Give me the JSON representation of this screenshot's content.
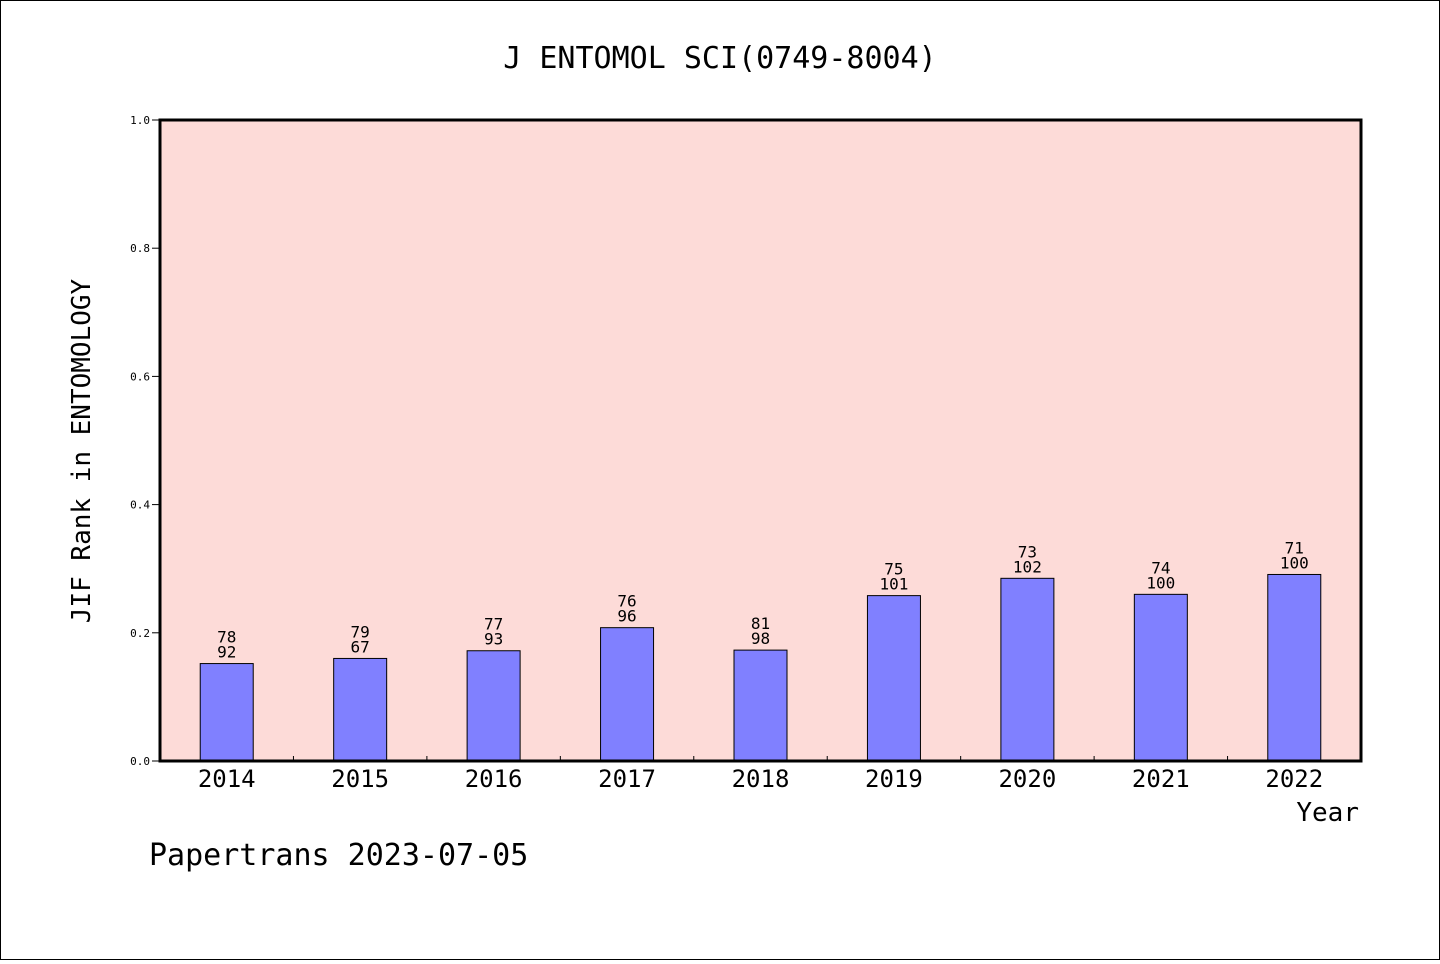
{
  "chart_data": {
    "type": "bar",
    "title": "J ENTOMOL SCI(0749-8004)",
    "xlabel": "Year",
    "ylabel": "JIF Rank in ENTOMOLOGY",
    "categories": [
      "2014",
      "2015",
      "2016",
      "2017",
      "2018",
      "2019",
      "2020",
      "2021",
      "2022"
    ],
    "values": [
      0.152,
      0.16,
      0.172,
      0.208,
      0.173,
      0.258,
      0.285,
      0.26,
      0.291
    ],
    "rank_labels": [
      "78",
      "79",
      "77",
      "76",
      "81",
      "75",
      "73",
      "74",
      "71"
    ],
    "total_labels": [
      "92",
      "67",
      "93",
      "96",
      "98",
      "101",
      "102",
      "100",
      "100"
    ],
    "ylim": [
      0,
      1.0
    ],
    "yticks": [
      "0.0",
      "0.2",
      "0.4",
      "0.6",
      "0.8",
      "1.0"
    ],
    "grid": false,
    "colors": {
      "plot_background": "#fddbd8",
      "bar": "#8080ff",
      "axis": "#000000"
    }
  },
  "footer": "Papertrans 2023-07-05"
}
